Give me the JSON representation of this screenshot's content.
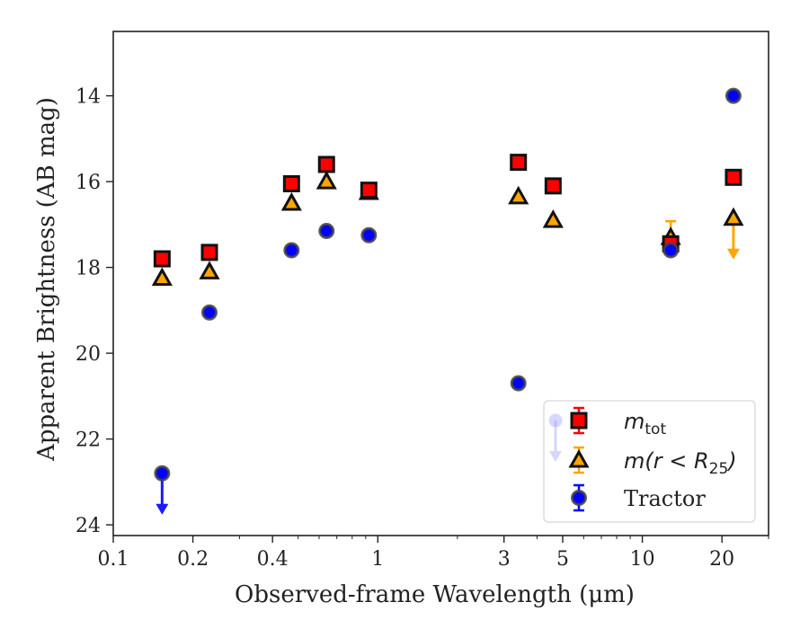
{
  "chart_data": {
    "type": "scatter",
    "xlabel": "Observed-frame Wavelength (μm)",
    "ylabel": "Apparent Brightness (AB mag)",
    "x_scale": "log",
    "xlim": [
      0.1,
      30
    ],
    "ylim": [
      24.25,
      12.5
    ],
    "y_inverted": true,
    "x_ticks": [
      0.1,
      0.2,
      0.4,
      1,
      3,
      5,
      10,
      20
    ],
    "x_tick_labels": [
      "0.1",
      "0.2",
      "0.4",
      "1",
      "3",
      "5",
      "10",
      "20"
    ],
    "y_ticks": [
      14,
      16,
      18,
      20,
      22,
      24
    ],
    "y_tick_labels": [
      "14",
      "16",
      "18",
      "20",
      "22",
      "24"
    ],
    "grid": false,
    "legend_position": "lower-right",
    "series": [
      {
        "name": "m_tot",
        "marker": "square",
        "color": "#ff0000",
        "edge": "#111111",
        "x": [
          0.153,
          0.231,
          0.472,
          0.64,
          0.925,
          3.4,
          4.6,
          12.8,
          22.1
        ],
        "y": [
          17.8,
          17.65,
          16.05,
          15.6,
          16.2,
          15.55,
          16.1,
          17.45,
          15.9
        ],
        "upper_limit": [
          false,
          false,
          false,
          false,
          false,
          false,
          false,
          false,
          false
        ]
      },
      {
        "name": "m(r < R25)",
        "marker": "triangle",
        "color": "#ffa500",
        "edge": "#111111",
        "x": [
          0.153,
          0.231,
          0.472,
          0.64,
          0.925,
          3.4,
          4.6,
          12.8,
          22.1
        ],
        "y": [
          18.25,
          18.1,
          16.5,
          16.0,
          16.25,
          16.35,
          16.9,
          17.3,
          16.85
        ],
        "upper_limit": [
          false,
          false,
          false,
          false,
          false,
          false,
          false,
          false,
          true
        ]
      },
      {
        "name": "Tractor",
        "marker": "circle",
        "color": "#0000ff",
        "edge": "#444444",
        "x": [
          0.153,
          0.231,
          0.472,
          0.64,
          0.925,
          3.4,
          12.8,
          22.1
        ],
        "y": [
          22.8,
          19.05,
          17.6,
          17.15,
          17.25,
          20.7,
          17.6,
          14.0
        ],
        "upper_limit": [
          true,
          false,
          false,
          false,
          false,
          false,
          false,
          false
        ]
      }
    ],
    "legend": [
      {
        "series": "m_tot",
        "base": "m",
        "sub": "tot",
        "suffix": ""
      },
      {
        "series": "m(r < R25)",
        "base": "m(r < R",
        "sub": "25",
        "suffix": ")"
      },
      {
        "series": "Tractor",
        "base": "Tractor",
        "sub": "",
        "suffix": ""
      }
    ]
  }
}
